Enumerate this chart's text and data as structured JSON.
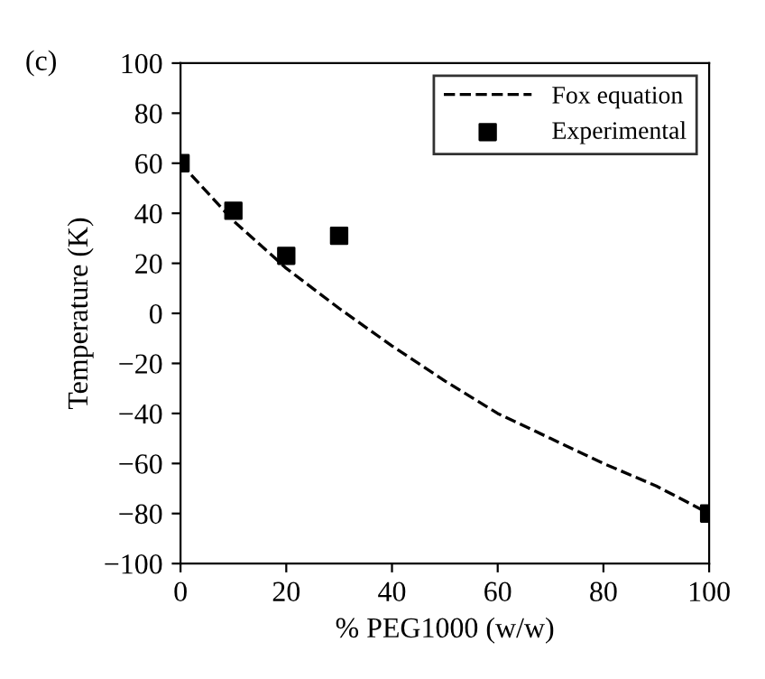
{
  "chart_data": {
    "type": "line",
    "xlabel": "% PEG1000 (w/w)",
    "ylabel": "Temperature (K)",
    "annotations": [
      "(c)"
    ],
    "xlim": [
      0,
      100
    ],
    "xticks": [
      0,
      20,
      40,
      60,
      80,
      100
    ],
    "ylim": [
      -100,
      100
    ],
    "yticks": [
      -100,
      -80,
      -60,
      -40,
      -20,
      0,
      20,
      40,
      60,
      80,
      100
    ],
    "grid": false,
    "legend": "top right",
    "series": [
      {
        "name": "Fox equation",
        "color": "#000000",
        "line_style": "dashed",
        "marker": "none",
        "x": [
          0,
          10,
          20,
          30,
          40,
          50,
          60,
          70,
          80,
          90,
          100
        ],
        "values": [
          60,
          37,
          18,
          2,
          -13,
          -27,
          -40,
          -50,
          -60,
          -69,
          -80
        ]
      },
      {
        "name": "Experimental",
        "type": "scatter",
        "color": "#000000",
        "marker": "square",
        "x": [
          0,
          10,
          20,
          30,
          100
        ],
        "values": [
          60,
          41,
          23,
          31,
          -80
        ]
      }
    ]
  }
}
